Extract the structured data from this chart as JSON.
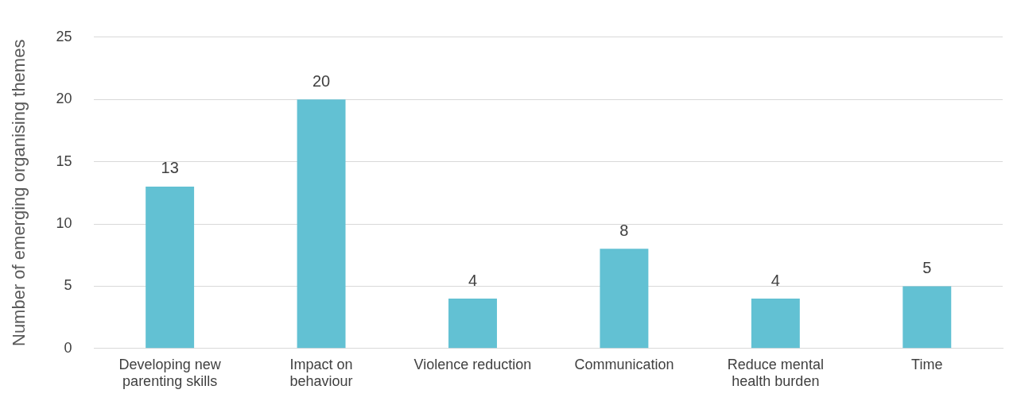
{
  "chart_data": {
    "type": "bar",
    "ylabel": "Number of emerging organising themes",
    "categories": [
      "Developing new parenting skills",
      "Impact on behaviour",
      "Violence reduction",
      "Communication",
      "Reduce mental health burden",
      "Time"
    ],
    "values": [
      13,
      20,
      4,
      8,
      4,
      5
    ],
    "color": "#62c1d3",
    "ylim": [
      0,
      25
    ],
    "yticks": [
      0,
      5,
      10,
      15,
      20,
      25
    ],
    "grid": "y",
    "legend": false,
    "data_labels": true
  }
}
